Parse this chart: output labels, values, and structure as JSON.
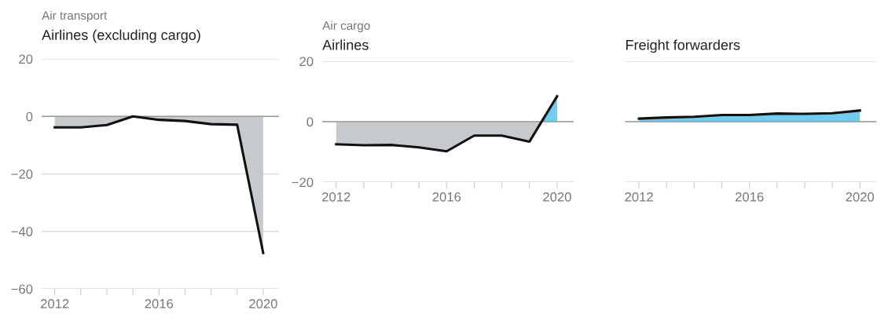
{
  "chart_data": [
    {
      "type": "area",
      "subtitle": "Air transport",
      "title": "Airlines (excluding cargo)",
      "x": [
        2012,
        2013,
        2014,
        2015,
        2016,
        2017,
        2018,
        2019,
        2020
      ],
      "series": [
        {
          "color": "#111111",
          "values": [
            -3.8,
            -3.8,
            -3.0,
            0,
            -1.2,
            -1.6,
            -2.7,
            -2.9,
            -47.5
          ]
        }
      ],
      "colors": [
        "#c6cacd",
        "#6fcdf0"
      ],
      "xlim": [
        2011.5,
        2020.6
      ],
      "xticks": [
        2012,
        {
          "value": 2013,
          "label": null
        },
        {
          "value": 2014,
          "label": null
        },
        {
          "value": 2015,
          "label": null
        },
        2016,
        {
          "value": 2017,
          "label": null
        },
        {
          "value": 2018,
          "label": null
        },
        {
          "value": 2019,
          "label": null
        },
        2020
      ],
      "ylim": [
        -60,
        20
      ],
      "yticks": [
        -60,
        -40,
        -20,
        0,
        20
      ],
      "grid": "y",
      "ref_lines": [
        {
          "axis": "y",
          "value": 0,
          "color": "#9a9a9a"
        }
      ],
      "legend": false
    },
    {
      "type": "area",
      "subtitle": "Air cargo",
      "title": "Airlines",
      "x": [
        2012,
        2013,
        2014,
        2015,
        2016,
        2017,
        2018,
        2019,
        2020
      ],
      "series": [
        {
          "color": "#111111",
          "values": [
            -7.5,
            -7.8,
            -7.7,
            -8.5,
            -9.8,
            -4.6,
            -4.6,
            -6.6,
            8.4
          ]
        }
      ],
      "colors": [
        "#c6cacd",
        "#6fcdf0"
      ],
      "xlim": [
        2011.5,
        2020.6
      ],
      "xticks": [
        2012,
        {
          "value": 2013,
          "label": null
        },
        {
          "value": 2014,
          "label": null
        },
        {
          "value": 2015,
          "label": null
        },
        2016,
        {
          "value": 2017,
          "label": null
        },
        {
          "value": 2018,
          "label": null
        },
        {
          "value": 2019,
          "label": null
        },
        2020
      ],
      "ylim": [
        -20,
        20
      ],
      "yticks": [
        -20,
        0,
        20
      ],
      "grid": "y",
      "ref_lines": [
        {
          "axis": "y",
          "value": 0,
          "color": "#9a9a9a"
        }
      ],
      "legend": false
    },
    {
      "type": "area",
      "title": "Freight forwarders",
      "x": [
        2012,
        2013,
        2014,
        2015,
        2016,
        2017,
        2018,
        2019,
        2020
      ],
      "series": [
        {
          "color": "#111111",
          "values": [
            1.0,
            1.4,
            1.6,
            2.2,
            2.2,
            2.7,
            2.6,
            2.8,
            3.7
          ]
        }
      ],
      "colors": [
        "#c6cacd",
        "#6fcdf0"
      ],
      "xlim": [
        2011.5,
        2020.6
      ],
      "xticks": [
        2012,
        {
          "value": 2013,
          "label": null
        },
        {
          "value": 2014,
          "label": null
        },
        {
          "value": 2015,
          "label": null
        },
        2016,
        {
          "value": 2017,
          "label": null
        },
        {
          "value": 2018,
          "label": null
        },
        {
          "value": 2019,
          "label": null
        },
        2020
      ],
      "ylim": [
        -20,
        20
      ],
      "yticks": [
        -20,
        0,
        20
      ],
      "grid": "y",
      "tick_labels": "x",
      "ref_lines": [
        {
          "axis": "y",
          "value": 0,
          "color": "#9a9a9a"
        }
      ],
      "legend": false
    }
  ]
}
